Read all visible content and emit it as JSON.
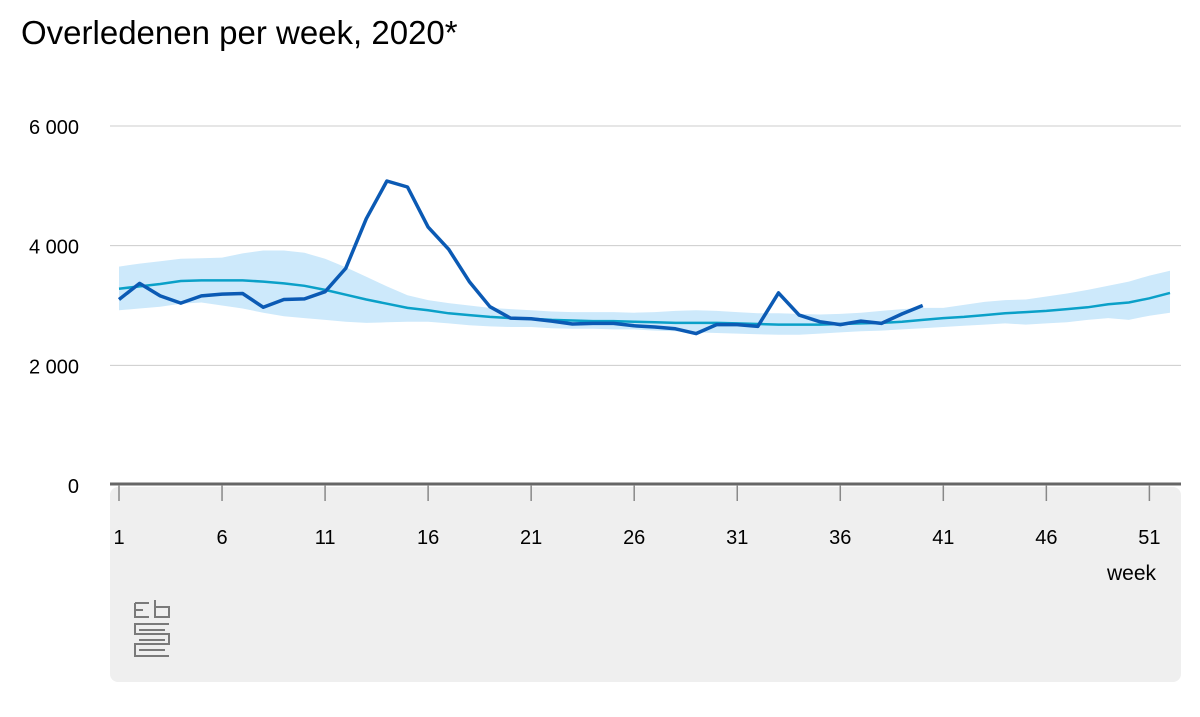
{
  "chart_data": {
    "type": "line",
    "title": "Overledenen per week, 2020*",
    "xlabel": "week",
    "ylabel": "",
    "xlim": [
      1,
      52
    ],
    "ylim": [
      0,
      6000
    ],
    "x_ticks": [
      1,
      6,
      11,
      16,
      21,
      26,
      31,
      36,
      41,
      46,
      51
    ],
    "x_tick_labels": [
      "1",
      "6",
      "11",
      "16",
      "21",
      "26",
      "31",
      "36",
      "41",
      "46",
      "51"
    ],
    "y_ticks": [
      0,
      2000,
      4000,
      6000
    ],
    "y_tick_labels": [
      "0",
      "2 000",
      "4 000",
      "6 000"
    ],
    "grid": true,
    "legend": "none",
    "colors": {
      "observed": "#0b5ab4",
      "expected": "#0aa0c8",
      "band": "#cde9fb",
      "footer": "#efefef",
      "axis": "#666666",
      "grid": "#cccccc"
    },
    "series": [
      {
        "role": "observed",
        "x": [
          1,
          2,
          3,
          4,
          5,
          6,
          7,
          8,
          9,
          10,
          11,
          12,
          13,
          14,
          15,
          16,
          17,
          18,
          19,
          20,
          21,
          22,
          23,
          24,
          25,
          26,
          27,
          28,
          29,
          30,
          31,
          32,
          33,
          34,
          35,
          36,
          37,
          38,
          39,
          40
        ],
        "values": [
          3100,
          3370,
          3160,
          3040,
          3160,
          3190,
          3200,
          2970,
          3100,
          3110,
          3230,
          3620,
          4450,
          5080,
          4980,
          4310,
          3940,
          3400,
          2980,
          2790,
          2780,
          2740,
          2690,
          2700,
          2700,
          2660,
          2640,
          2610,
          2530,
          2680,
          2680,
          2650,
          3210,
          2840,
          2730,
          2680,
          2740,
          2700,
          2860,
          3000
        ]
      },
      {
        "role": "expected",
        "x": [
          1,
          2,
          3,
          4,
          5,
          6,
          7,
          8,
          9,
          10,
          11,
          12,
          13,
          14,
          15,
          16,
          17,
          18,
          19,
          20,
          21,
          22,
          23,
          24,
          25,
          26,
          27,
          28,
          29,
          30,
          31,
          32,
          33,
          34,
          35,
          36,
          37,
          38,
          39,
          40,
          41,
          42,
          43,
          44,
          45,
          46,
          47,
          48,
          49,
          50,
          51,
          52
        ],
        "values": [
          3280,
          3320,
          3360,
          3410,
          3420,
          3420,
          3420,
          3400,
          3370,
          3330,
          3260,
          3180,
          3100,
          3030,
          2960,
          2920,
          2870,
          2840,
          2810,
          2790,
          2780,
          2760,
          2750,
          2740,
          2740,
          2730,
          2720,
          2710,
          2710,
          2710,
          2700,
          2690,
          2680,
          2680,
          2680,
          2690,
          2700,
          2710,
          2730,
          2760,
          2790,
          2810,
          2840,
          2870,
          2890,
          2910,
          2940,
          2970,
          3020,
          3050,
          3120,
          3210
        ]
      },
      {
        "role": "band",
        "x": [
          1,
          2,
          3,
          4,
          5,
          6,
          7,
          8,
          9,
          10,
          11,
          12,
          13,
          14,
          15,
          16,
          17,
          18,
          19,
          20,
          21,
          22,
          23,
          24,
          25,
          26,
          27,
          28,
          29,
          30,
          31,
          32,
          33,
          34,
          35,
          36,
          37,
          38,
          39,
          40,
          41,
          42,
          43,
          44,
          45,
          46,
          47,
          48,
          49,
          50,
          51,
          52
        ],
        "lower": [
          2920,
          2950,
          2980,
          3030,
          3050,
          3000,
          2950,
          2880,
          2820,
          2790,
          2760,
          2730,
          2710,
          2720,
          2730,
          2730,
          2700,
          2670,
          2650,
          2640,
          2640,
          2620,
          2610,
          2610,
          2600,
          2600,
          2580,
          2570,
          2550,
          2540,
          2530,
          2520,
          2510,
          2510,
          2530,
          2550,
          2570,
          2580,
          2600,
          2620,
          2640,
          2660,
          2680,
          2700,
          2680,
          2700,
          2720,
          2760,
          2790,
          2760,
          2830,
          2880
        ],
        "upper": [
          3650,
          3700,
          3740,
          3780,
          3790,
          3800,
          3870,
          3920,
          3920,
          3880,
          3780,
          3640,
          3480,
          3320,
          3170,
          3090,
          3040,
          3000,
          2960,
          2940,
          2920,
          2900,
          2890,
          2890,
          2890,
          2880,
          2890,
          2910,
          2920,
          2910,
          2890,
          2870,
          2870,
          2860,
          2850,
          2860,
          2880,
          2910,
          2940,
          2960,
          2960,
          3010,
          3060,
          3090,
          3100,
          3150,
          3200,
          3260,
          3330,
          3400,
          3500,
          3580
        ]
      }
    ]
  }
}
